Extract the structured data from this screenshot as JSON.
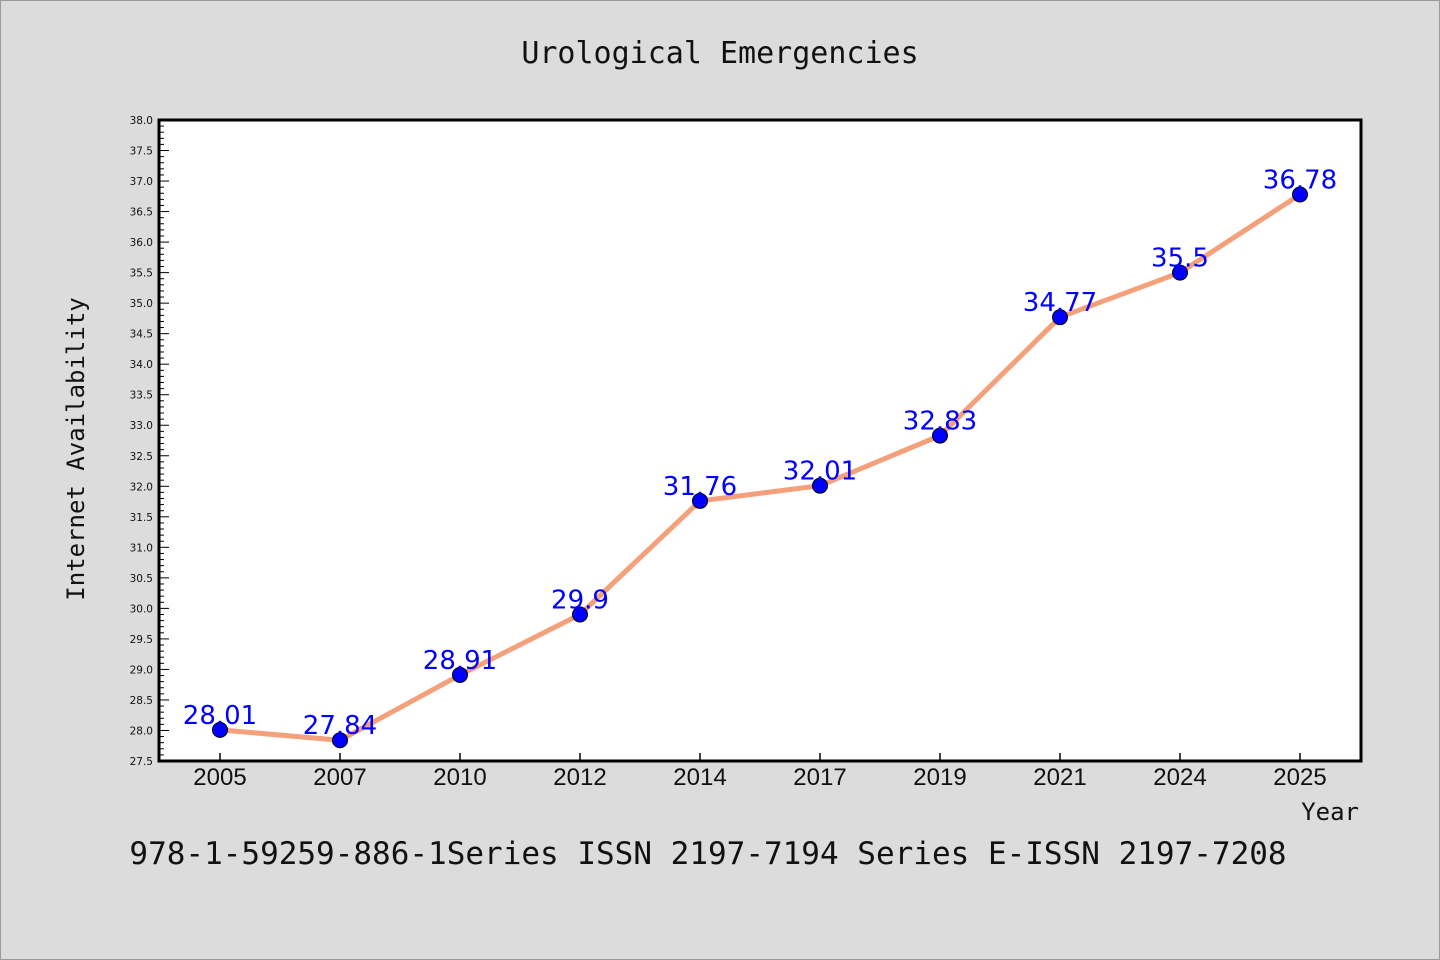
{
  "chart_data": {
    "type": "line",
    "title": "Urological Emergencies",
    "xlabel": "Year",
    "ylabel": "Internet Availability",
    "categories": [
      "2005",
      "2007",
      "2010",
      "2012",
      "2014",
      "2017",
      "2019",
      "2021",
      "2024",
      "2025"
    ],
    "series": [
      {
        "values": [
          28.01,
          27.84,
          28.91,
          29.9,
          31.76,
          32.01,
          32.83,
          34.77,
          35.5,
          36.78
        ],
        "labels": [
          "28.01",
          "27.84",
          "28.91",
          "29.9",
          "31.76",
          "32.01",
          "32.83",
          "34.77",
          "35.5",
          "36.78"
        ],
        "line_color": "#f4a07a",
        "marker_color": "#0000ff"
      }
    ],
    "ylim": [
      27.5,
      38.0
    ],
    "yticks": [
      "27.5",
      "28.0",
      "28.5",
      "29.0",
      "29.5",
      "30.0",
      "30.5",
      "31.0",
      "31.5",
      "32.0",
      "32.5",
      "33.0",
      "33.5",
      "34.0",
      "34.5",
      "35.0",
      "35.5",
      "36.0",
      "36.5",
      "37.0",
      "37.5",
      "38.0"
    ],
    "grid": false,
    "legend": "none"
  },
  "footer": {
    "text": "978-1-59259-886-1Series ISSN 2197-7194 Series E-ISSN 2197-7208"
  },
  "colors": {
    "background": "#dcdcdc",
    "plot_background": "#ffffff",
    "line": "#f4a07a",
    "marker": "#0000ff",
    "data_label": "#0000ff"
  }
}
